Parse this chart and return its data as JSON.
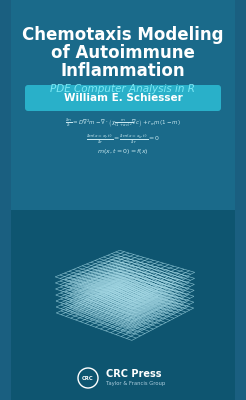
{
  "bg_color_top": "#1a6a8a",
  "bg_color_bottom": "#0e5570",
  "title_line1": "Chemotaxis Modeling",
  "title_line2": "of Autoimmune",
  "title_line3": "Inflammation",
  "subtitle": "PDE Computer Analysis in R",
  "author": "William E. Schiesser",
  "author_bg": "#29b0c9",
  "title_color": "#ffffff",
  "subtitle_color": "#7de8f5",
  "eq_color": "#c8e8f0",
  "crc_text": "CRC Press",
  "crc_sub": "Taylor & Francis Group",
  "left_stripe_color": "#1a5f80",
  "right_stripe_color": "#1a5f80",
  "wire_color": "#a8dce8"
}
